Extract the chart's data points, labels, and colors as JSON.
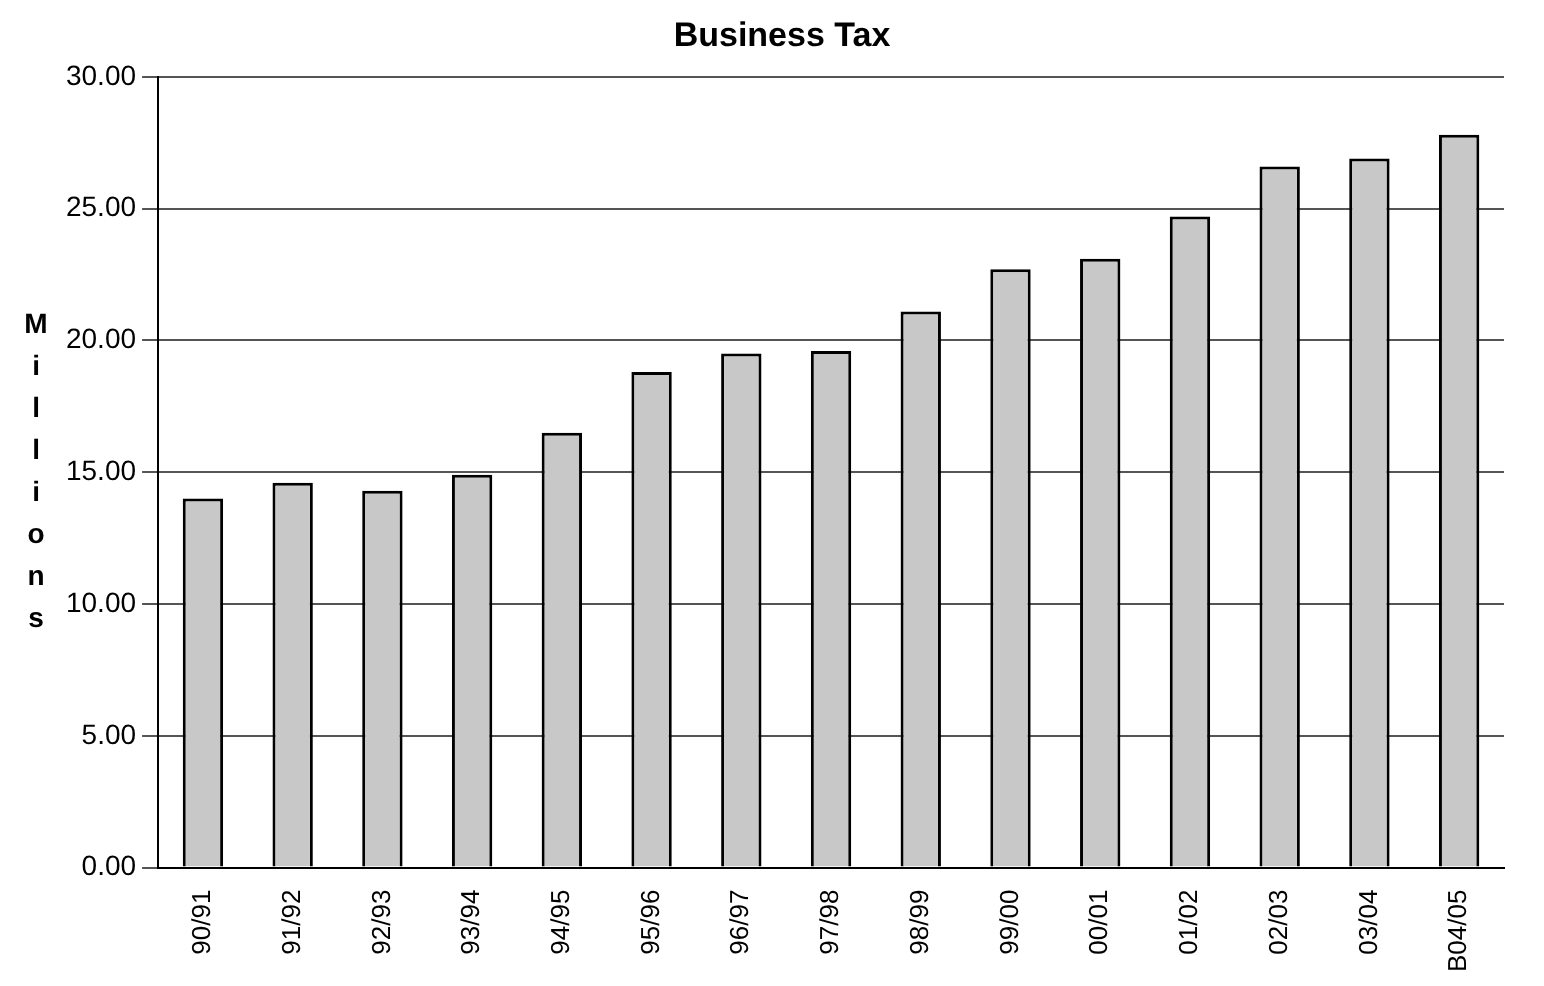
{
  "chart_data": {
    "type": "bar",
    "title": "Business Tax",
    "ylabel": "Millions",
    "categories": [
      "90/91",
      "91/92",
      "92/93",
      "93/94",
      "94/95",
      "95/96",
      "96/97",
      "97/98",
      "98/99",
      "99/00",
      "00/01",
      "01/02",
      "02/03",
      "03/04",
      "B04/05"
    ],
    "values": [
      14.0,
      14.6,
      14.3,
      14.9,
      16.5,
      18.8,
      19.5,
      19.6,
      21.1,
      22.7,
      23.1,
      24.7,
      26.6,
      26.9,
      27.8
    ],
    "color": "#c8c8c8",
    "ylim": [
      0,
      30
    ],
    "yticks": [
      {
        "value": 0,
        "label": "0.00"
      },
      {
        "value": 5,
        "label": "5.00"
      },
      {
        "value": 10,
        "label": "10.00"
      },
      {
        "value": 15,
        "label": "15.00"
      },
      {
        "value": 20,
        "label": "20.00"
      },
      {
        "value": 25,
        "label": "25.00"
      },
      {
        "value": 30,
        "label": "30.00"
      }
    ],
    "grid": "y"
  }
}
